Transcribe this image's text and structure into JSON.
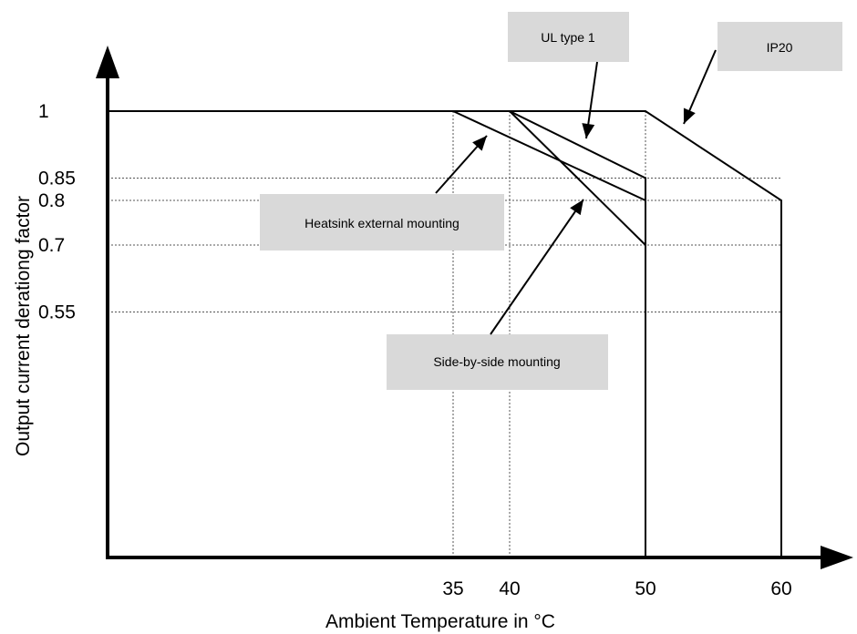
{
  "chart_data": {
    "type": "line",
    "xlabel": "Ambient Temperature in °C",
    "ylabel": "Output current derationg factor",
    "x_ticks": [
      35,
      40,
      50,
      60
    ],
    "y_ticks": [
      1,
      0.85,
      0.8,
      0.7,
      0.55
    ],
    "x_tick_labels": [
      "35",
      "40",
      "50",
      "60"
    ],
    "y_tick_labels": [
      "1",
      "0.85",
      "0.8",
      "0.7",
      "0.55"
    ],
    "grid": "dotted reference lines at tick values",
    "series": [
      {
        "name": "IP20",
        "x": [
          0,
          50,
          60,
          60
        ],
        "y": [
          1,
          1,
          0.8,
          0
        ]
      },
      {
        "name": "UL type 1",
        "x": [
          0,
          40,
          50,
          50
        ],
        "y": [
          1,
          1,
          0.85,
          0
        ]
      },
      {
        "name": "Heatsink external mounting",
        "x": [
          35,
          50
        ],
        "y": [
          1,
          0.8
        ]
      },
      {
        "name": "Side-by-side mounting",
        "x": [
          40,
          50
        ],
        "y": [
          1,
          0.7
        ]
      }
    ],
    "annotations": [
      {
        "key": "ul",
        "text": "UL type 1",
        "points_to_series": "UL type 1"
      },
      {
        "key": "ip20",
        "text": "IP20",
        "points_to_series": "IP20"
      },
      {
        "key": "heatsink",
        "text": "Heatsink external mounting",
        "points_to_series": "Heatsink external mounting"
      },
      {
        "key": "side",
        "text": "Side-by-side mounting",
        "points_to_series": "Side-by-side mounting"
      }
    ],
    "colors": {
      "lines": "#000000",
      "callout_fill": "#d9d9d9",
      "grid": "#555555"
    }
  }
}
